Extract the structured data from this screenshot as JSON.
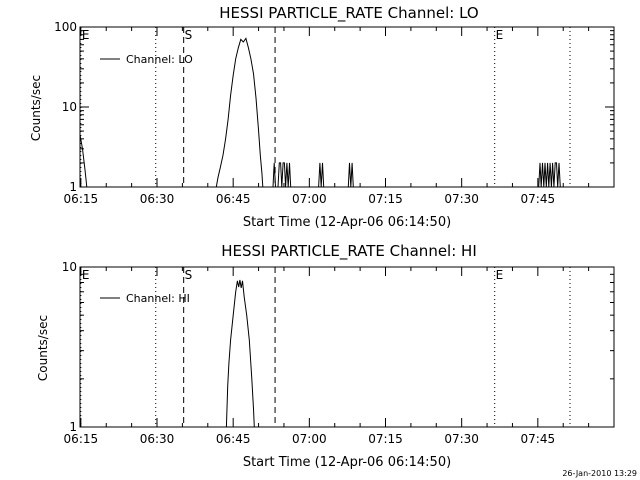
{
  "chart_data": [
    {
      "type": "line",
      "title": "HESSI PARTICLE_RATE Channel: LO",
      "xlabel": "Start Time (12-Apr-06 06:14:50)",
      "ylabel": "Counts/sec",
      "yscale": "log",
      "ylim": [
        1,
        100
      ],
      "xlim": [
        "06:14:50",
        "08:00:00"
      ],
      "x_ticks": [
        "06:15",
        "06:30",
        "06:45",
        "07:00",
        "07:15",
        "07:30",
        "07:45"
      ],
      "y_ticks": [
        "1",
        "10",
        "100"
      ],
      "legend": {
        "placement": "top-left",
        "entries": [
          "Channel: LO"
        ]
      },
      "markers": [
        {
          "label": "E",
          "time": "06:15:00",
          "style": "dotted"
        },
        {
          "label": "",
          "time": "06:29:45",
          "style": "dotted"
        },
        {
          "label": "S",
          "time": "06:35:15",
          "style": "dashed"
        },
        {
          "label": "",
          "time": "06:53:15",
          "style": "dashed"
        },
        {
          "label": "E",
          "time": "07:36:30",
          "style": "dotted"
        },
        {
          "label": "",
          "time": "07:51:20",
          "style": "dotted"
        }
      ],
      "series": [
        {
          "name": "Channel: LO",
          "segments": [
            [
              [
                "06:14:50",
                4.5
              ],
              [
                "06:15:20",
                3
              ],
              [
                "06:15:50",
                1.6
              ],
              [
                "06:16:10",
                1
              ]
            ],
            [
              [
                "06:41:40",
                1
              ],
              [
                "06:42:00",
                1.3
              ],
              [
                "06:42:30",
                1.8
              ],
              [
                "06:43:00",
                2.5
              ],
              [
                "06:43:30",
                4
              ],
              [
                "06:44:00",
                7
              ],
              [
                "06:44:30",
                14
              ],
              [
                "06:45:00",
                25
              ],
              [
                "06:45:30",
                40
              ],
              [
                "06:46:00",
                55
              ],
              [
                "06:46:30",
                70
              ],
              [
                "06:47:00",
                65
              ],
              [
                "06:47:30",
                72
              ],
              [
                "06:48:00",
                55
              ],
              [
                "06:48:30",
                40
              ],
              [
                "06:49:00",
                26
              ],
              [
                "06:49:30",
                13
              ],
              [
                "06:50:00",
                5
              ],
              [
                "06:50:20",
                2.5
              ],
              [
                "06:50:40",
                1.5
              ],
              [
                "06:50:50",
                1
              ]
            ],
            [
              [
                "06:52:50",
                1
              ],
              [
                "06:53:05",
                2
              ],
              [
                "06:53:20",
                1
              ]
            ],
            [
              [
                "06:53:50",
                1
              ],
              [
                "06:54:05",
                2
              ],
              [
                "06:54:20",
                2
              ],
              [
                "06:54:35",
                1
              ],
              [
                "06:54:50",
                2
              ],
              [
                "06:55:05",
                2
              ],
              [
                "06:55:20",
                1
              ],
              [
                "06:55:35",
                2
              ],
              [
                "06:55:50",
                1
              ],
              [
                "06:56:05",
                2
              ],
              [
                "06:56:20",
                1
              ]
            ],
            [
              [
                "07:01:50",
                1
              ],
              [
                "07:02:05",
                2
              ],
              [
                "07:02:20",
                1
              ],
              [
                "07:02:35",
                2
              ],
              [
                "07:02:50",
                1
              ]
            ],
            [
              [
                "07:07:40",
                1
              ],
              [
                "07:07:55",
                2
              ],
              [
                "07:08:10",
                1
              ],
              [
                "07:08:25",
                2
              ],
              [
                "07:08:40",
                1
              ]
            ],
            [
              [
                "07:45:10",
                1
              ],
              [
                "07:45:25",
                2
              ],
              [
                "07:45:40",
                1
              ],
              [
                "07:45:55",
                2
              ],
              [
                "07:46:10",
                1
              ],
              [
                "07:46:25",
                2
              ],
              [
                "07:46:40",
                1
              ],
              [
                "07:46:55",
                2
              ],
              [
                "07:47:10",
                1
              ],
              [
                "07:47:25",
                2
              ],
              [
                "07:47:40",
                1
              ],
              [
                "07:47:55",
                2
              ],
              [
                "07:48:10",
                1
              ],
              [
                "07:48:25",
                2
              ],
              [
                "07:48:40",
                2
              ],
              [
                "07:48:55",
                1
              ],
              [
                "07:49:10",
                2
              ],
              [
                "07:49:25",
                1
              ]
            ]
          ]
        }
      ]
    },
    {
      "type": "line",
      "title": "HESSI PARTICLE_RATE Channel: HI",
      "xlabel": "Start Time (12-Apr-06 06:14:50)",
      "ylabel": "Counts/sec",
      "yscale": "log",
      "ylim": [
        1,
        10
      ],
      "xlim": [
        "06:14:50",
        "08:00:00"
      ],
      "x_ticks": [
        "06:15",
        "06:30",
        "06:45",
        "07:00",
        "07:15",
        "07:30",
        "07:45"
      ],
      "y_ticks": [
        "1",
        "10"
      ],
      "legend": {
        "placement": "top-left",
        "entries": [
          "Channel: HI"
        ]
      },
      "markers": [
        {
          "label": "E",
          "time": "06:15:00",
          "style": "dotted"
        },
        {
          "label": "",
          "time": "06:29:45",
          "style": "dotted"
        },
        {
          "label": "S",
          "time": "06:35:15",
          "style": "dashed"
        },
        {
          "label": "",
          "time": "06:53:15",
          "style": "dashed"
        },
        {
          "label": "E",
          "time": "07:36:30",
          "style": "dotted"
        },
        {
          "label": "",
          "time": "07:51:20",
          "style": "dotted"
        }
      ],
      "series": [
        {
          "name": "Channel: HI",
          "segments": [
            [
              [
                "06:43:40",
                1
              ],
              [
                "06:43:55",
                1.8
              ],
              [
                "06:44:10",
                2.5
              ],
              [
                "06:44:30",
                3.5
              ],
              [
                "06:45:00",
                5
              ],
              [
                "06:45:30",
                7
              ],
              [
                "06:45:50",
                8.2
              ],
              [
                "06:46:05",
                7.5
              ],
              [
                "06:46:20",
                8.3
              ],
              [
                "06:46:35",
                7.4
              ],
              [
                "06:46:50",
                8.2
              ],
              [
                "06:47:10",
                6.5
              ],
              [
                "06:47:40",
                5
              ],
              [
                "06:48:10",
                3.5
              ],
              [
                "06:48:40",
                2
              ],
              [
                "06:49:00",
                1.3
              ],
              [
                "06:49:10",
                1
              ]
            ]
          ]
        }
      ]
    }
  ],
  "footer": {
    "date_stamp": "26-Jan-2010 13:29"
  }
}
